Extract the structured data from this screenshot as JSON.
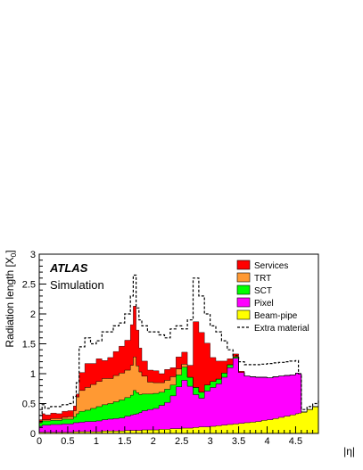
{
  "chart_data": {
    "type": "area",
    "stacked": true,
    "title": "",
    "xlabel": "|η|",
    "ylabel": "Radiation length [X0]",
    "ylabel_text": "Radiation length [X",
    "ylabel_sub": "0",
    "ylabel_close": "]",
    "xlim": [
      0,
      4.9
    ],
    "ylim": [
      0,
      3
    ],
    "x_ticks": [
      0,
      0.5,
      1,
      1.5,
      2,
      2.5,
      3,
      3.5,
      4,
      4.5
    ],
    "x_tick_labels": [
      "0",
      "0.5",
      "1",
      "1.5",
      "2",
      "2.5",
      "3",
      "3.5",
      "4",
      "4.5"
    ],
    "y_ticks": [
      0,
      0.5,
      1,
      1.5,
      2,
      2.5,
      3
    ],
    "y_tick_labels": [
      "0",
      "0.5",
      "1",
      "1.5",
      "2",
      "2.5",
      "3"
    ],
    "grid": false,
    "legend_position": "top-right",
    "annotations": {
      "experiment": "ATLAS",
      "subtitle": "Simulation"
    },
    "x": [
      0,
      0.05,
      0.1,
      0.2,
      0.3,
      0.4,
      0.5,
      0.6,
      0.65,
      0.7,
      0.8,
      0.9,
      1.0,
      1.1,
      1.2,
      1.3,
      1.4,
      1.5,
      1.6,
      1.65,
      1.7,
      1.75,
      1.8,
      1.9,
      2.0,
      2.1,
      2.2,
      2.3,
      2.4,
      2.5,
      2.6,
      2.7,
      2.8,
      2.9,
      3.0,
      3.1,
      3.2,
      3.3,
      3.4,
      3.5,
      3.6,
      3.7,
      3.8,
      3.9,
      4.0,
      4.1,
      4.2,
      4.3,
      4.4,
      4.5,
      4.55,
      4.6,
      4.7,
      4.8,
      4.9
    ],
    "series": [
      {
        "name": "Beam-pipe",
        "color": "#ffff00",
        "values": [
          0.02,
          0.02,
          0.02,
          0.02,
          0.02,
          0.02,
          0.02,
          0.03,
          0.03,
          0.03,
          0.03,
          0.03,
          0.03,
          0.04,
          0.04,
          0.04,
          0.04,
          0.05,
          0.05,
          0.05,
          0.05,
          0.05,
          0.06,
          0.06,
          0.06,
          0.07,
          0.07,
          0.08,
          0.08,
          0.09,
          0.09,
          0.1,
          0.11,
          0.11,
          0.12,
          0.13,
          0.14,
          0.15,
          0.16,
          0.17,
          0.18,
          0.19,
          0.2,
          0.22,
          0.23,
          0.25,
          0.27,
          0.29,
          0.31,
          0.33,
          0.34,
          0.36,
          0.4,
          0.45,
          0.5
        ]
      },
      {
        "name": "Pixel",
        "color": "#ff00ff",
        "values": [
          0.1,
          0.12,
          0.12,
          0.13,
          0.13,
          0.14,
          0.14,
          0.15,
          0.15,
          0.16,
          0.17,
          0.17,
          0.18,
          0.19,
          0.2,
          0.21,
          0.22,
          0.24,
          0.26,
          0.27,
          0.28,
          0.3,
          0.32,
          0.34,
          0.36,
          0.4,
          0.45,
          0.55,
          0.7,
          0.8,
          0.7,
          0.55,
          0.48,
          0.6,
          0.65,
          0.7,
          0.8,
          0.95,
          1.1,
          0.85,
          0.78,
          0.76,
          0.74,
          0.72,
          0.7,
          0.7,
          0.69,
          0.68,
          0.67,
          0.68,
          0.66,
          0.0,
          0.0,
          0.0,
          0.0
        ]
      },
      {
        "name": "SCT",
        "color": "#00ff00",
        "values": [
          0.06,
          0.07,
          0.07,
          0.07,
          0.07,
          0.08,
          0.08,
          0.1,
          0.15,
          0.18,
          0.19,
          0.22,
          0.24,
          0.25,
          0.26,
          0.28,
          0.3,
          0.31,
          0.33,
          0.4,
          0.35,
          0.3,
          0.28,
          0.26,
          0.25,
          0.22,
          0.22,
          0.18,
          0.2,
          0.22,
          0.15,
          0.12,
          0.1,
          0.1,
          0.1,
          0.08,
          0.07,
          0.05,
          0.02,
          0.0,
          0.0,
          0.0,
          0.0,
          0.0,
          0.0,
          0.0,
          0.0,
          0.0,
          0.0,
          0.0,
          0.0,
          0.0,
          0.0,
          0.0,
          0.0
        ]
      },
      {
        "name": "TRT",
        "color": "#ff9933",
        "values": [
          0.0,
          0.02,
          0.02,
          0.03,
          0.03,
          0.03,
          0.04,
          0.1,
          0.28,
          0.35,
          0.38,
          0.4,
          0.42,
          0.44,
          0.42,
          0.44,
          0.45,
          0.46,
          0.5,
          0.56,
          0.45,
          0.38,
          0.3,
          0.2,
          0.18,
          0.16,
          0.15,
          0.14,
          0.1,
          0.05,
          0.0,
          0.0,
          0.0,
          0.0,
          0.0,
          0.0,
          0.0,
          0.0,
          0.0,
          0.0,
          0.0,
          0.0,
          0.0,
          0.0,
          0.0,
          0.0,
          0.0,
          0.0,
          0.0,
          0.0,
          0.0,
          0.0,
          0.0,
          0.0,
          0.0
        ]
      },
      {
        "name": "Services",
        "color": "#ff0000",
        "values": [
          0.05,
          0.1,
          0.08,
          0.09,
          0.08,
          0.1,
          0.1,
          0.08,
          0.05,
          0.3,
          0.4,
          0.35,
          0.38,
          0.3,
          0.35,
          0.4,
          0.45,
          0.5,
          0.68,
          0.85,
          0.6,
          0.4,
          0.25,
          0.2,
          0.2,
          0.15,
          0.18,
          0.15,
          0.2,
          0.2,
          0.2,
          1.1,
          1.0,
          0.7,
          0.4,
          0.3,
          0.2,
          0.1,
          0.05,
          0.02,
          0.0,
          0.0,
          0.0,
          0.0,
          0.0,
          0.0,
          0.0,
          0.0,
          0.0,
          0.0,
          0.0,
          0.0,
          0.0,
          0.0,
          0.0
        ]
      },
      {
        "name": "Extra material",
        "line_style": "dashed",
        "total": [
          0.3,
          0.48,
          0.42,
          0.45,
          0.45,
          0.48,
          0.5,
          0.62,
          0.85,
          1.45,
          1.6,
          1.5,
          1.55,
          1.7,
          1.7,
          1.8,
          1.85,
          2.0,
          2.3,
          2.65,
          2.1,
          1.9,
          1.8,
          1.7,
          1.7,
          1.65,
          1.6,
          1.75,
          1.8,
          1.75,
          1.9,
          2.6,
          2.3,
          2.0,
          1.8,
          1.7,
          1.55,
          1.4,
          1.3,
          1.2,
          1.15,
          1.15,
          1.15,
          1.16,
          1.17,
          1.18,
          1.19,
          1.2,
          1.21,
          1.22,
          1.0,
          0.4,
          0.45,
          0.5,
          0.55
        ]
      }
    ]
  }
}
